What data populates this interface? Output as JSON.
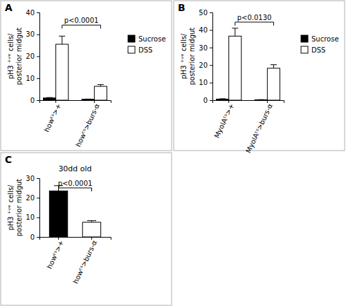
{
  "chart_data": [
    {
      "type": "bar",
      "panel_label": "A",
      "y_label": [
        "pH3 ⁺ᵛᵉ cells/",
        "posterior midgut"
      ],
      "categories": [
        "howᵗˢ>+",
        "howᵗˢ>burs-α"
      ],
      "series": [
        {
          "name": "Sucrose",
          "color": "#000000",
          "values": [
            1.0,
            0.4
          ],
          "errors": [
            0.2,
            0.1
          ]
        },
        {
          "name": "DSS",
          "color": "#ffffff",
          "values": [
            25.5,
            6.3
          ],
          "errors": [
            3.7,
            0.8
          ]
        }
      ],
      "ylim": [
        0,
        40
      ],
      "yticks": [
        0,
        10,
        20,
        30,
        40
      ],
      "legend": "right",
      "annotation": "p<0.0001"
    },
    {
      "type": "bar",
      "panel_label": "B",
      "y_label": [
        "pH3 ⁺ᵛᵉ cells/",
        "posterior midgut"
      ],
      "categories": [
        "MyoIAᵗˢ>+",
        "MyoIAᵗˢ>burs-α"
      ],
      "series": [
        {
          "name": "Sucrose",
          "color": "#000000",
          "values": [
            0.6,
            0.2
          ],
          "errors": [
            0.2,
            0.1
          ]
        },
        {
          "name": "DSS",
          "color": "#ffffff",
          "values": [
            36.5,
            18.2
          ],
          "errors": [
            4.5,
            2.0
          ]
        }
      ],
      "ylim": [
        0,
        50
      ],
      "yticks": [
        0,
        10,
        20,
        30,
        40,
        50
      ],
      "legend": "right",
      "annotation": "p<0.0130"
    },
    {
      "type": "bar",
      "panel_label": "C",
      "title": "30dd old",
      "y_label": [
        "pH3 ⁺ᵛᵉ cells/",
        "posterior midgut"
      ],
      "categories": [
        "howᵗˢ>+",
        "howᵗˢ>burs-α"
      ],
      "series": [
        {
          "colors": [
            "#000000",
            "#ffffff"
          ],
          "values": [
            23.5,
            7.5
          ],
          "errors": [
            2.7,
            0.8
          ]
        }
      ],
      "ylim": [
        0,
        30
      ],
      "yticks": [
        0,
        10,
        20,
        30
      ],
      "annotation": "p<0.0001"
    }
  ]
}
